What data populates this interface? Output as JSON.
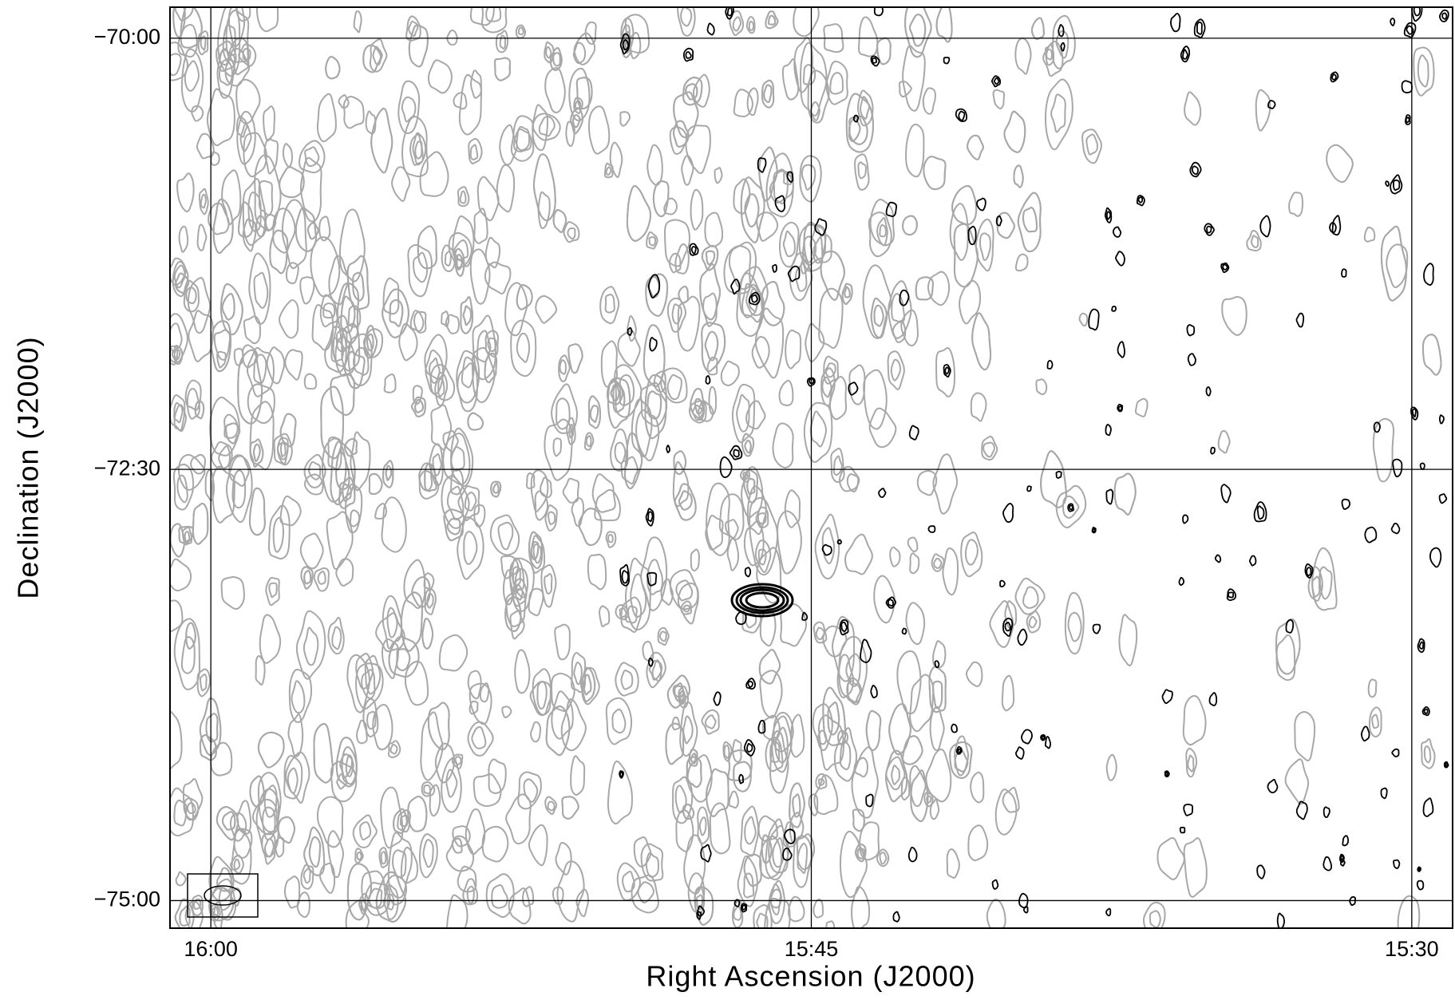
{
  "chart_data": {
    "type": "contour",
    "x_label": "Right Ascension (J2000)",
    "y_label": "Declination (J2000)",
    "xlim": [
      16.017,
      15.483
    ],
    "xticks": [
      {
        "value": 16,
        "label": "16:00"
      },
      {
        "value": 15.75,
        "label": "15:45"
      },
      {
        "value": 15.5,
        "label": "15:30"
      }
    ],
    "ylim": [
      -75.16,
      -69.82
    ],
    "yticks": [
      {
        "value": -70,
        "label": "−70:00"
      },
      {
        "value": -72.5,
        "label": "−72:30"
      },
      {
        "value": -75,
        "label": "−75:00"
      }
    ],
    "grid": true,
    "positive_color": "#000000",
    "negative_color": "#a8a8a8"
  }
}
